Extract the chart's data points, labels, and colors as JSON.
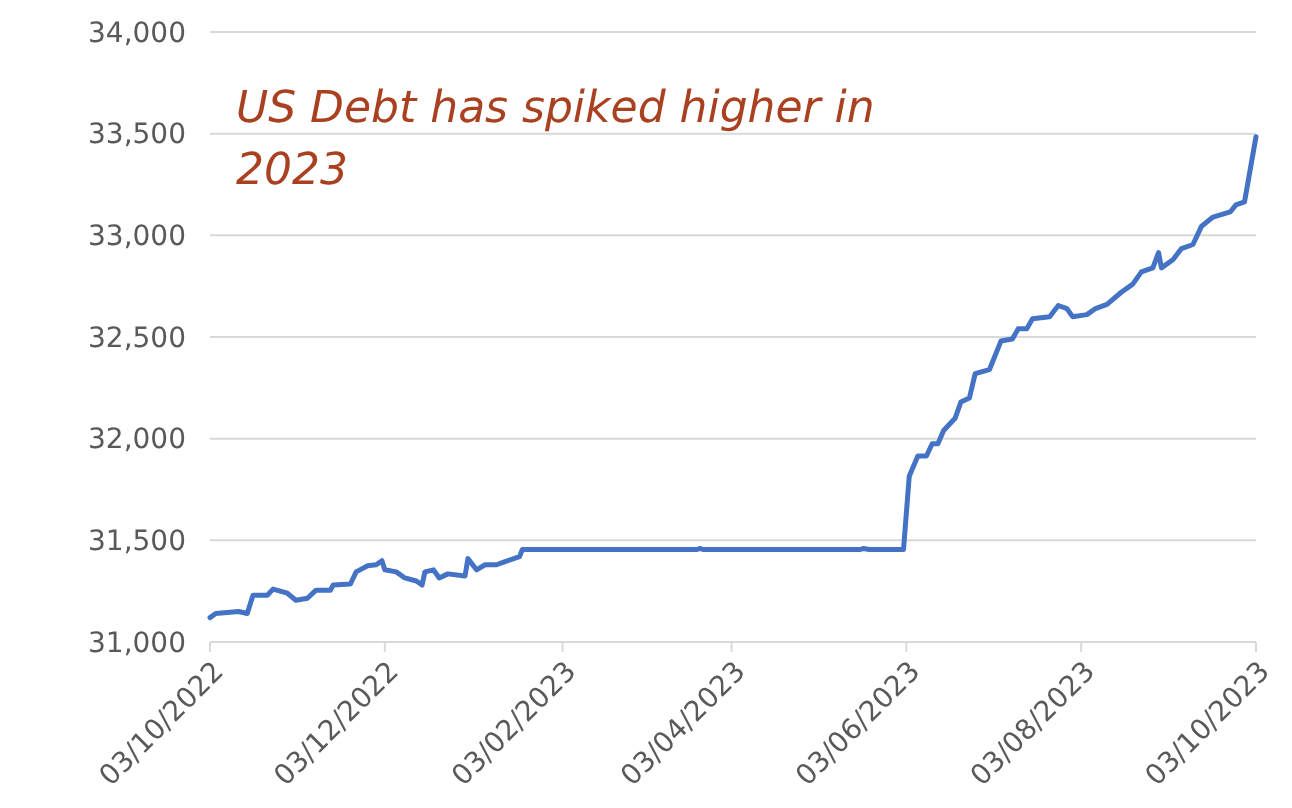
{
  "chart_data": {
    "type": "line",
    "annotations": [
      "US Debt has spiked higher in 2023"
    ],
    "x": [
      "2022-10-03",
      "2022-10-05",
      "2022-10-13",
      "2022-10-16",
      "2022-10-18",
      "2022-10-23",
      "2022-10-25",
      "2022-10-30",
      "2022-11-02",
      "2022-11-06",
      "2022-11-09",
      "2022-11-14",
      "2022-11-15",
      "2022-11-21",
      "2022-11-23",
      "2022-11-27",
      "2022-11-30",
      "2022-12-02",
      "2022-12-03",
      "2022-12-07",
      "2022-12-10",
      "2022-12-14",
      "2022-12-16",
      "2022-12-17",
      "2022-12-20",
      "2022-12-22",
      "2022-12-25",
      "2022-12-31",
      "2023-01-01",
      "2023-01-04",
      "2023-01-07",
      "2023-01-11",
      "2023-01-13",
      "2023-01-19",
      "2023-01-20",
      "2023-03-22",
      "2023-03-23",
      "2023-03-24",
      "2023-05-18",
      "2023-05-19",
      "2023-05-21",
      "2023-06-02",
      "2023-06-04",
      "2023-06-07",
      "2023-06-10",
      "2023-06-12",
      "2023-06-14",
      "2023-06-16",
      "2023-06-20",
      "2023-06-22",
      "2023-06-25",
      "2023-06-27",
      "2023-07-02",
      "2023-07-06",
      "2023-07-10",
      "2023-07-12",
      "2023-07-15",
      "2023-07-17",
      "2023-07-23",
      "2023-07-26",
      "2023-07-29",
      "2023-07-31",
      "2023-08-05",
      "2023-08-08",
      "2023-08-12",
      "2023-08-17",
      "2023-08-21",
      "2023-08-24",
      "2023-08-28",
      "2023-08-30",
      "2023-08-31",
      "2023-09-04",
      "2023-09-07",
      "2023-09-11",
      "2023-09-14",
      "2023-09-18",
      "2023-09-24",
      "2023-09-26",
      "2023-09-29",
      "2023-09-30",
      "2023-10-03"
    ],
    "series": [
      {
        "color": "#4472c4",
        "values": [
          31120,
          31140,
          31150,
          31140,
          31230,
          31230,
          31260,
          31240,
          31205,
          31215,
          31255,
          31255,
          31280,
          31285,
          31345,
          31375,
          31380,
          31400,
          31355,
          31345,
          31315,
          31300,
          31280,
          31345,
          31355,
          31315,
          31335,
          31325,
          31410,
          31355,
          31380,
          31380,
          31390,
          31420,
          31455,
          31455,
          31460,
          31455,
          31455,
          31460,
          31455,
          31455,
          31815,
          31915,
          31915,
          31975,
          31975,
          32040,
          32100,
          32180,
          32200,
          32320,
          32340,
          32480,
          32490,
          32540,
          32540,
          32590,
          32600,
          32655,
          32640,
          32600,
          32610,
          32640,
          32660,
          32720,
          32760,
          32820,
          32840,
          32915,
          32840,
          32880,
          32935,
          32955,
          33045,
          33090,
          33115,
          33150,
          33165,
          33245,
          33485
        ]
      }
    ],
    "ylim": [
      31000,
      34000
    ],
    "yticks": [
      {
        "value": 31000,
        "label": "31,000"
      },
      {
        "value": 31500,
        "label": "31,500"
      },
      {
        "value": 32000,
        "label": "32,000"
      },
      {
        "value": 32500,
        "label": "32,500"
      },
      {
        "value": 33000,
        "label": "33,000"
      },
      {
        "value": 33500,
        "label": "33,500"
      },
      {
        "value": 34000,
        "label": "34,000"
      }
    ],
    "xlim": [
      "2022-10-03",
      "2023-10-03"
    ],
    "xticks": [
      {
        "value": "2022-10-03",
        "label": "03/10/2022"
      },
      {
        "value": "2022-12-03",
        "label": "03/12/2022"
      },
      {
        "value": "2023-02-03",
        "label": "03/02/2023"
      },
      {
        "value": "2023-04-03",
        "label": "03/04/2023"
      },
      {
        "value": "2023-06-03",
        "label": "03/06/2023"
      },
      {
        "value": "2023-08-03",
        "label": "03/08/2023"
      },
      {
        "value": "2023-10-03",
        "label": "03/10/2023"
      }
    ],
    "grid": "y",
    "marker": "none",
    "line_style": "solid"
  }
}
